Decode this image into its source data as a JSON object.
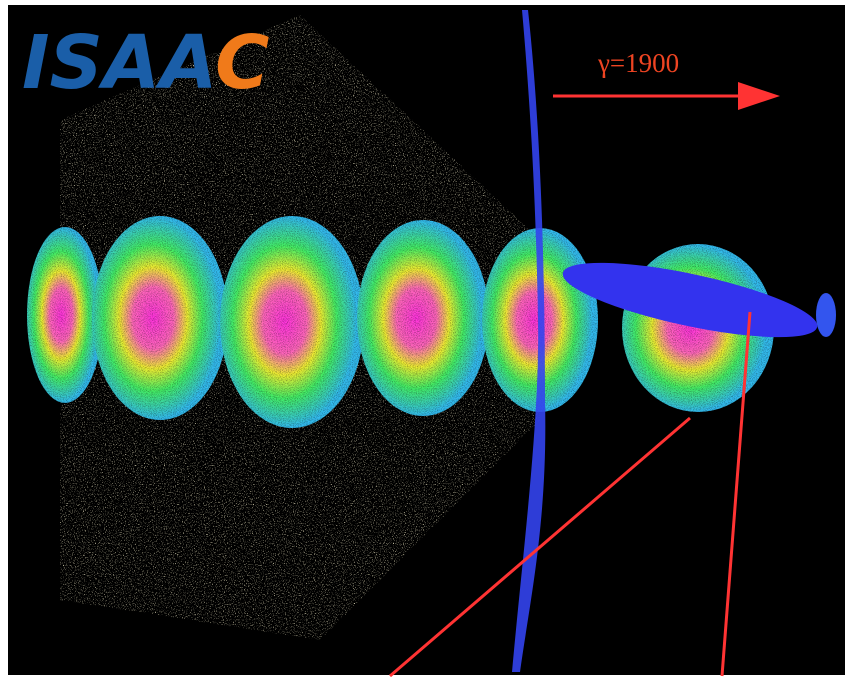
{
  "logo": {
    "parts": [
      "ISAA",
      "C"
    ]
  },
  "annotation": "γ=1900"
}
